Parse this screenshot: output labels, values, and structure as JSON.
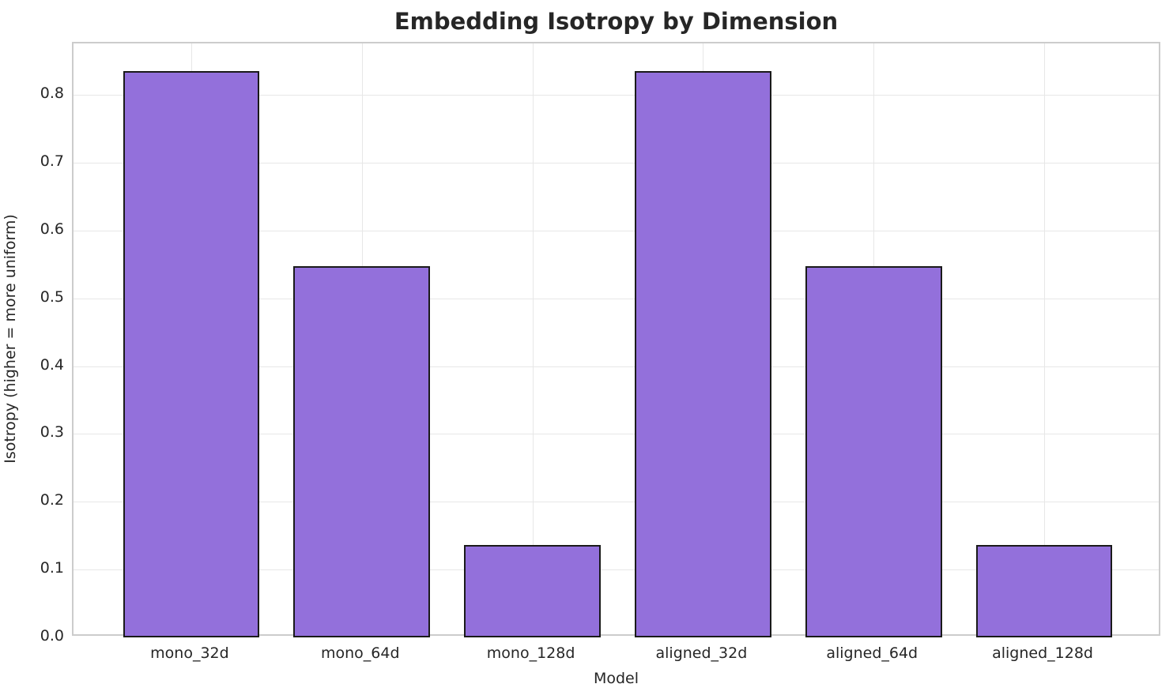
{
  "chart_data": {
    "type": "bar",
    "title": "Embedding Isotropy by Dimension",
    "xlabel": "Model",
    "ylabel": "Isotropy (higher = more uniform)",
    "categories": [
      "mono_32d",
      "mono_64d",
      "mono_128d",
      "aligned_32d",
      "aligned_64d",
      "aligned_128d"
    ],
    "values": [
      0.835,
      0.547,
      0.136,
      0.835,
      0.547,
      0.136
    ],
    "ylim": [
      0,
      0.876
    ],
    "xlim": [
      -0.69,
      5.69
    ],
    "yticks": [
      0.0,
      0.1,
      0.2,
      0.3,
      0.4,
      0.5,
      0.6,
      0.7,
      0.8
    ],
    "ytick_labels": [
      "0.0",
      "0.1",
      "0.2",
      "0.3",
      "0.4",
      "0.5",
      "0.6",
      "0.7",
      "0.8"
    ],
    "bar_width": 0.8,
    "grid": true,
    "legend": false,
    "bar_color": "#9370DB",
    "bar_edge_color": "#1a1a1a",
    "gridline_color": "#e7e7e7",
    "spine_color": "#cccccc",
    "text_color": "#262626",
    "background_color": "#ffffff"
  }
}
